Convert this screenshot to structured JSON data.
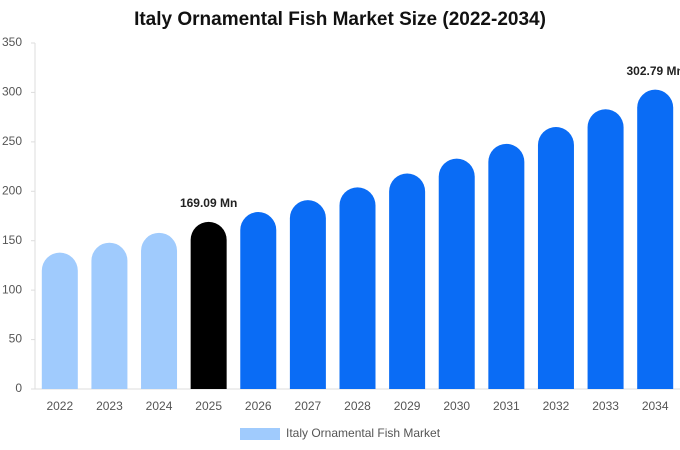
{
  "chart_data": {
    "type": "bar",
    "title": "Italy Ornamental Fish Market Size (2022-2034)",
    "categories": [
      "2022",
      "2023",
      "2024",
      "2025",
      "2026",
      "2027",
      "2028",
      "2029",
      "2030",
      "2031",
      "2032",
      "2033",
      "2034"
    ],
    "series": [
      {
        "name": "Italy Ornamental Fish Market",
        "color": "#a0cbfd",
        "values": [
          138,
          148,
          158,
          169.09,
          179,
          191,
          204,
          218,
          233,
          248,
          265,
          283,
          302.79
        ],
        "value_labels": [
          null,
          null,
          null,
          "169.09 Mn",
          null,
          null,
          null,
          null,
          null,
          null,
          null,
          null,
          "302.79 Mn"
        ],
        "colors": [
          "#a0cbfd",
          "#a0cbfd",
          "#a0cbfd",
          "#000000",
          "#0a6cf5",
          "#0a6cf5",
          "#0a6cf5",
          "#0a6cf5",
          "#0a6cf5",
          "#0a6cf5",
          "#0a6cf5",
          "#0a6cf5",
          "#0a6cf5"
        ]
      }
    ],
    "ylim": [
      0,
      350
    ],
    "yticks": [
      0,
      50,
      100,
      150,
      200,
      250,
      300,
      350
    ],
    "grid": false
  }
}
